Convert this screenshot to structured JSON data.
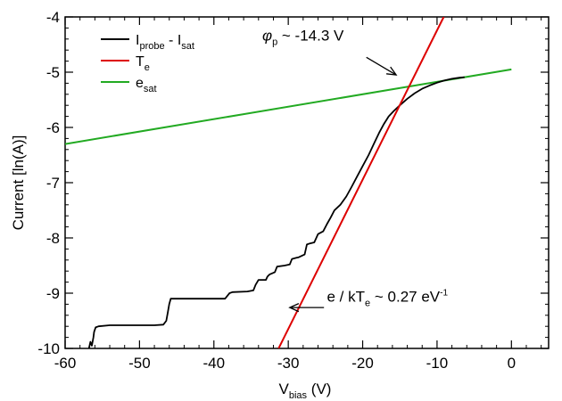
{
  "chart_data": {
    "type": "line",
    "xlabel": {
      "main": "V",
      "sub": "bias",
      "rest": " (V)"
    },
    "ylabel": "Current [ln(A)]",
    "xlim": [
      -60,
      5
    ],
    "ylim": [
      -10,
      -4
    ],
    "x_ticks": [
      -60,
      -50,
      -40,
      -30,
      -20,
      -10,
      0
    ],
    "y_ticks": [
      -10,
      -9,
      -8,
      -7,
      -6,
      -5,
      -4
    ],
    "grid": false,
    "legend_position": "top-left",
    "legend": [
      {
        "main": "I",
        "sub": "probe",
        "mid": " - I",
        "sub2": "sat",
        "color": "#000000"
      },
      {
        "main": "T",
        "sub": "e",
        "mid": "",
        "sub2": "",
        "color": "#dd0000"
      },
      {
        "main": "e",
        "sub": "sat",
        "mid": "",
        "sub2": "",
        "color": "#22aa22"
      }
    ],
    "series": [
      {
        "name": "I_probe - I_sat",
        "color": "#000000",
        "x": [
          -56.8,
          -56.6,
          -56.4,
          -56.2,
          -56.1,
          -55.9,
          -55.5,
          -54.0,
          -52.0,
          -50.0,
          -48.0,
          -46.8,
          -46.4,
          -46.2,
          -46.0,
          -45.8,
          -44.0,
          -42.0,
          -40.0,
          -38.5,
          -38.2,
          -37.9,
          -37.5,
          -35.5,
          -34.7,
          -34.4,
          -34.0,
          -33.0,
          -32.8,
          -32.5,
          -31.8,
          -31.5,
          -30.5,
          -29.8,
          -29.5,
          -28.9,
          -28.6,
          -27.8,
          -27.5,
          -27.1,
          -26.5,
          -26.0,
          -25.3,
          -24.8,
          -24.3,
          -23.8,
          -23.0,
          -22.2,
          -21.5,
          -20.8,
          -20.0,
          -19.2,
          -18.5,
          -17.8,
          -17.2,
          -16.5,
          -15.8,
          -15.0,
          -14.0,
          -13.0,
          -12.0,
          -11.0,
          -10.0,
          -9.0,
          -8.0,
          -7.0,
          -6.3
        ],
        "y": [
          -10.0,
          -9.88,
          -9.95,
          -9.8,
          -9.7,
          -9.62,
          -9.6,
          -9.58,
          -9.58,
          -9.58,
          -9.58,
          -9.57,
          -9.5,
          -9.35,
          -9.2,
          -9.1,
          -9.1,
          -9.1,
          -9.1,
          -9.1,
          -9.05,
          -9.0,
          -8.98,
          -8.97,
          -8.95,
          -8.85,
          -8.76,
          -8.76,
          -8.7,
          -8.66,
          -8.62,
          -8.52,
          -8.5,
          -8.48,
          -8.38,
          -8.36,
          -8.35,
          -8.3,
          -8.12,
          -8.1,
          -8.08,
          -7.93,
          -7.88,
          -7.75,
          -7.63,
          -7.5,
          -7.4,
          -7.25,
          -7.08,
          -6.9,
          -6.7,
          -6.5,
          -6.3,
          -6.1,
          -5.95,
          -5.8,
          -5.7,
          -5.6,
          -5.48,
          -5.38,
          -5.3,
          -5.24,
          -5.19,
          -5.15,
          -5.12,
          -5.1,
          -5.09
        ]
      },
      {
        "name": "T_e",
        "color": "#dd0000",
        "x": [
          -31.3,
          -9.1
        ],
        "y": [
          -10.0,
          -4.0
        ]
      },
      {
        "name": "e_sat",
        "color": "#22aa22",
        "x": [
          -60.0,
          0.0
        ],
        "y": [
          -6.3,
          -4.95
        ]
      }
    ],
    "annotations": [
      {
        "kind": "phi",
        "symbol": "φ",
        "sub": "p",
        "text": " ~ -14.3 V",
        "text_at": [
          -33.5,
          -4.43
        ],
        "arrow_from": [
          -19.5,
          -4.73
        ],
        "arrow_to": [
          -15.5,
          -5.05
        ]
      },
      {
        "kind": "slope",
        "main": "e / kT",
        "sub": "e",
        "mid": " ~ 0.27 eV",
        "sup": "-1",
        "text_at": [
          -24.8,
          -9.15
        ],
        "arrow_from": [
          -25.2,
          -9.26
        ],
        "arrow_to": [
          -29.8,
          -9.26
        ]
      }
    ]
  }
}
